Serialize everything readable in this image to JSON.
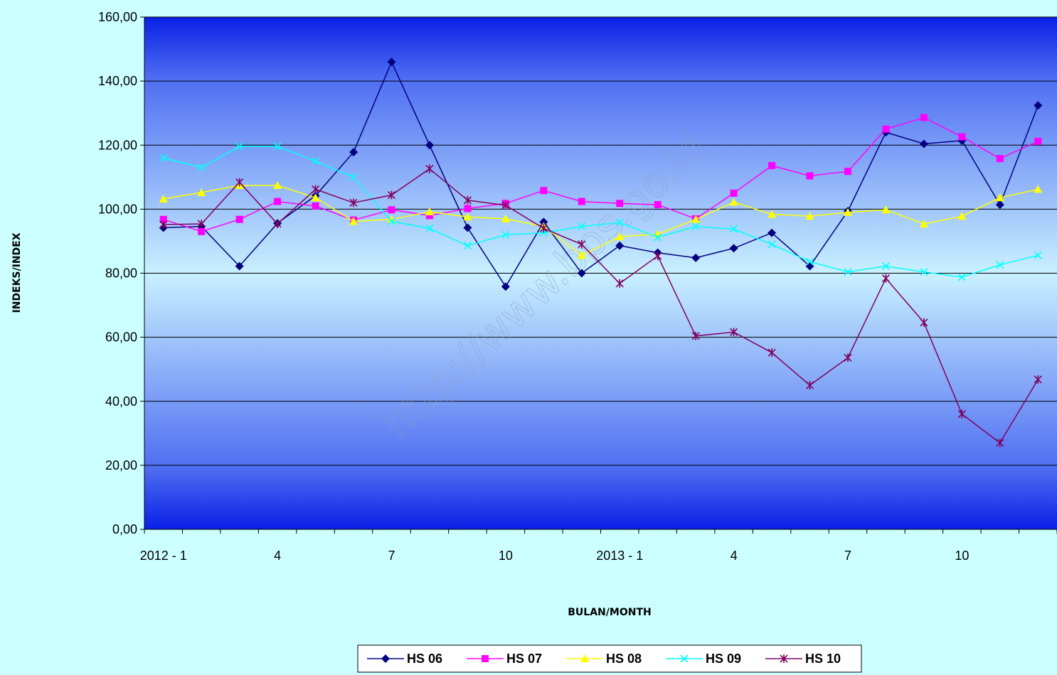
{
  "chart_data": {
    "type": "line",
    "title": "",
    "xlabel": "BULAN/MONTH",
    "ylabel": "INDEKS/INDEX",
    "ylim": [
      0,
      160
    ],
    "yticks": [
      "0,00",
      "20,00",
      "40,00",
      "60,00",
      "80,00",
      "100,00",
      "120,00",
      "140,00",
      "160,00"
    ],
    "x_tick_labels": [
      {
        "index": 0,
        "label": "2012 - 1"
      },
      {
        "index": 3,
        "label": "4"
      },
      {
        "index": 6,
        "label": "7"
      },
      {
        "index": 9,
        "label": "10"
      },
      {
        "index": 12,
        "label": "2013 - 1"
      },
      {
        "index": 15,
        "label": "4"
      },
      {
        "index": 18,
        "label": "7"
      },
      {
        "index": 21,
        "label": "10"
      }
    ],
    "categories": [
      "2012-01",
      "2012-02",
      "2012-03",
      "2012-04",
      "2012-05",
      "2012-06",
      "2012-07",
      "2012-08",
      "2012-09",
      "2012-10",
      "2012-11",
      "2012-12",
      "2013-01",
      "2013-02",
      "2013-03",
      "2013-04",
      "2013-05",
      "2013-06",
      "2013-07",
      "2013-08",
      "2013-09",
      "2013-10",
      "2013-11",
      "2013-12"
    ],
    "grid": true,
    "legend_position": "bottom",
    "watermark": "http://www.bps.go.id",
    "series": [
      {
        "name": "HS 06",
        "color": "#000080",
        "marker": "diamond",
        "values": [
          94.2,
          94.6,
          82.2,
          95.6,
          104.2,
          117.8,
          146.0,
          120.0,
          94.2,
          75.8,
          96.0,
          80.0,
          88.6,
          86.4,
          84.8,
          87.8,
          92.6,
          82.2,
          99.4,
          124.0,
          120.4,
          121.4,
          101.4,
          132.4
        ]
      },
      {
        "name": "HS 07",
        "color": "#FF00FF",
        "marker": "square",
        "values": [
          96.8,
          93.0,
          96.8,
          102.4,
          101.0,
          96.6,
          99.8,
          98.0,
          100.2,
          101.8,
          105.8,
          102.4,
          101.8,
          101.4,
          97.0,
          105.0,
          113.6,
          110.4,
          111.8,
          125.0,
          128.6,
          122.6,
          115.8,
          121.2
        ]
      },
      {
        "name": "HS 08",
        "color": "#FFFF00",
        "marker": "triangle",
        "values": [
          103.2,
          105.2,
          107.4,
          107.4,
          103.6,
          96.2,
          96.8,
          99.2,
          97.6,
          97.0,
          94.6,
          85.6,
          91.4,
          92.2,
          96.8,
          102.2,
          98.4,
          97.8,
          99.0,
          99.8,
          95.4,
          97.8,
          103.6,
          106.2
        ]
      },
      {
        "name": "HS 09",
        "color": "#00FFFF",
        "marker": "x",
        "values": [
          116.0,
          113.0,
          119.6,
          119.6,
          115.0,
          110.0,
          96.2,
          94.0,
          88.6,
          92.0,
          92.6,
          94.6,
          95.8,
          91.2,
          94.6,
          93.8,
          89.0,
          83.6,
          80.4,
          82.2,
          80.4,
          78.8,
          82.6,
          85.6
        ]
      },
      {
        "name": "HS 10",
        "color": "#800060",
        "marker": "star",
        "values": [
          95.2,
          95.4,
          108.4,
          95.4,
          106.2,
          102.0,
          104.4,
          112.6,
          102.8,
          101.2,
          94.0,
          89.0,
          76.8,
          85.4,
          60.4,
          61.6,
          55.2,
          45.0,
          53.6,
          78.4,
          64.6,
          36.0,
          27.0,
          46.8
        ]
      }
    ]
  }
}
